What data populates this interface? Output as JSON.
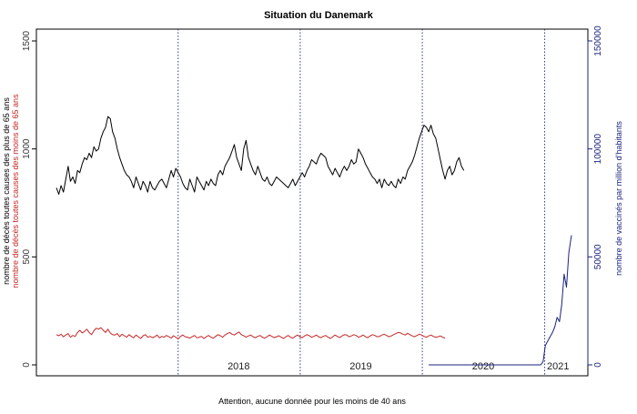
{
  "chart_data": {
    "type": "line",
    "title": "Situation du Danemark",
    "footnote": "Attention, aucune donnée pour les moins de 40 ans",
    "y_left_label_black": "nombre de décès toutes causes des plus de 65 ans",
    "y_left_label_red": "nombre de décès toutes causes des moins de 65 ans",
    "y_right_label": "nombre de vaccinés par million d'habitants",
    "y_left_ticks": [
      "0",
      "500",
      "1000",
      "1500"
    ],
    "y_left_range": [
      0,
      1500
    ],
    "y_right_ticks": [
      "0",
      "50000",
      "100000",
      "150000"
    ],
    "y_right_range": [
      0,
      150000
    ],
    "x_range": [
      "2017-01-02",
      "2021-03-22"
    ],
    "year_dividers": [
      "2018-01-01",
      "2019-01-01",
      "2020-01-01",
      "2021-01-01"
    ],
    "year_labels": [
      {
        "label": "2018",
        "date": "2018-07-01"
      },
      {
        "label": "2019",
        "date": "2019-07-01"
      },
      {
        "label": "2020",
        "date": "2020-07-01"
      },
      {
        "label": "2021",
        "date": "2021-02-10"
      }
    ],
    "series": [
      {
        "role": "deaths_over_65",
        "color": "#000000",
        "start": "2017-01-02",
        "step_days": 7,
        "values": [
          820,
          790,
          830,
          800,
          860,
          920,
          850,
          870,
          840,
          900,
          890,
          930,
          960,
          950,
          980,
          960,
          1010,
          990,
          1000,
          1050,
          1080,
          1100,
          1150,
          1140,
          1080,
          1050,
          1000,
          960,
          930,
          900,
          880,
          870,
          850,
          820,
          870,
          840,
          810,
          850,
          830,
          800,
          850,
          820,
          810,
          830,
          850,
          860,
          840,
          820,
          860,
          900,
          870,
          910,
          890,
          870,
          840,
          820,
          810,
          860,
          830,
          800,
          870,
          850,
          830,
          810,
          850,
          830,
          860,
          840,
          830,
          880,
          900,
          880,
          920,
          940,
          960,
          990,
          1020,
          960,
          930,
          900,
          1000,
          1040,
          960,
          930,
          900,
          880,
          920,
          890,
          860,
          850,
          870,
          840,
          830,
          850,
          870,
          860,
          850,
          840,
          830,
          820,
          840,
          860,
          830,
          850,
          870,
          890,
          870,
          900,
          920,
          950,
          940,
          930,
          960,
          980,
          970,
          960,
          920,
          900,
          880,
          910,
          890,
          870,
          900,
          920,
          900,
          920,
          950,
          930,
          940,
          1000,
          980,
          960,
          930,
          910,
          890,
          870,
          860,
          840,
          860,
          820,
          860,
          840,
          830,
          850,
          830,
          820,
          860,
          840,
          870,
          860,
          900,
          920,
          940,
          970,
          1010,
          1050,
          1080,
          1110,
          1100,
          1080,
          1110,
          1070,
          1050,
          1000,
          950,
          900,
          860,
          900,
          920,
          880,
          900,
          940,
          960,
          920,
          900
        ],
        "plot_stride": 1
      },
      {
        "role": "deaths_under_65",
        "color": "#c62828",
        "start": "2017-01-02",
        "step_days": 7,
        "values": [
          140,
          135,
          142,
          130,
          138,
          145,
          128,
          136,
          132,
          150,
          160,
          148,
          155,
          165,
          150,
          140,
          158,
          170,
          165,
          172,
          160,
          150,
          165,
          148,
          140,
          138,
          145,
          130,
          142,
          135,
          128,
          140,
          132,
          125,
          138,
          130,
          122,
          135,
          140,
          128,
          132,
          126,
          130,
          138,
          125,
          132,
          128,
          136,
          130,
          124,
          135,
          128,
          120,
          132,
          138,
          130,
          128,
          124,
          130,
          136,
          125,
          128,
          132,
          122,
          130,
          136,
          128,
          124,
          132,
          140,
          135,
          128,
          138,
          145,
          150,
          142,
          138,
          146,
          152,
          140,
          135,
          128,
          134,
          138,
          130,
          126,
          132,
          136,
          128,
          124,
          130,
          138,
          132,
          126,
          130,
          135,
          128,
          122,
          130,
          136,
          128,
          124,
          132,
          138,
          130,
          126,
          134,
          140,
          135,
          128,
          132,
          138,
          130,
          126,
          132,
          136,
          128,
          122,
          130,
          138,
          132,
          126,
          134,
          140,
          138,
          130,
          134,
          140,
          136,
          128,
          132,
          138,
          130,
          126,
          134,
          140,
          136,
          130,
          132,
          138,
          142,
          136,
          130,
          134,
          140,
          145,
          150,
          148,
          142,
          138,
          146,
          140,
          134,
          130,
          136,
          142,
          138,
          132,
          128,
          134,
          138,
          132,
          128,
          130,
          134,
          128,
          124
        ],
        "plot_stride": 1
      },
      {
        "role": "vaccinated_per_million",
        "color": "#1a237e",
        "axis": "right",
        "points": [
          [
            "2020-01-20",
            0
          ],
          [
            "2020-12-20",
            0
          ],
          [
            "2020-12-27",
            1500
          ],
          [
            "2021-01-03",
            9000
          ],
          [
            "2021-01-10",
            11000
          ],
          [
            "2021-01-17",
            13000
          ],
          [
            "2021-01-24",
            15000
          ],
          [
            "2021-01-31",
            17500
          ],
          [
            "2021-02-07",
            22000
          ],
          [
            "2021-02-14",
            20000
          ],
          [
            "2021-02-21",
            28000
          ],
          [
            "2021-02-28",
            42000
          ],
          [
            "2021-03-07",
            36000
          ],
          [
            "2021-03-14",
            52000
          ],
          [
            "2021-03-22",
            60000
          ]
        ]
      }
    ],
    "grid": false,
    "legend": "none"
  }
}
